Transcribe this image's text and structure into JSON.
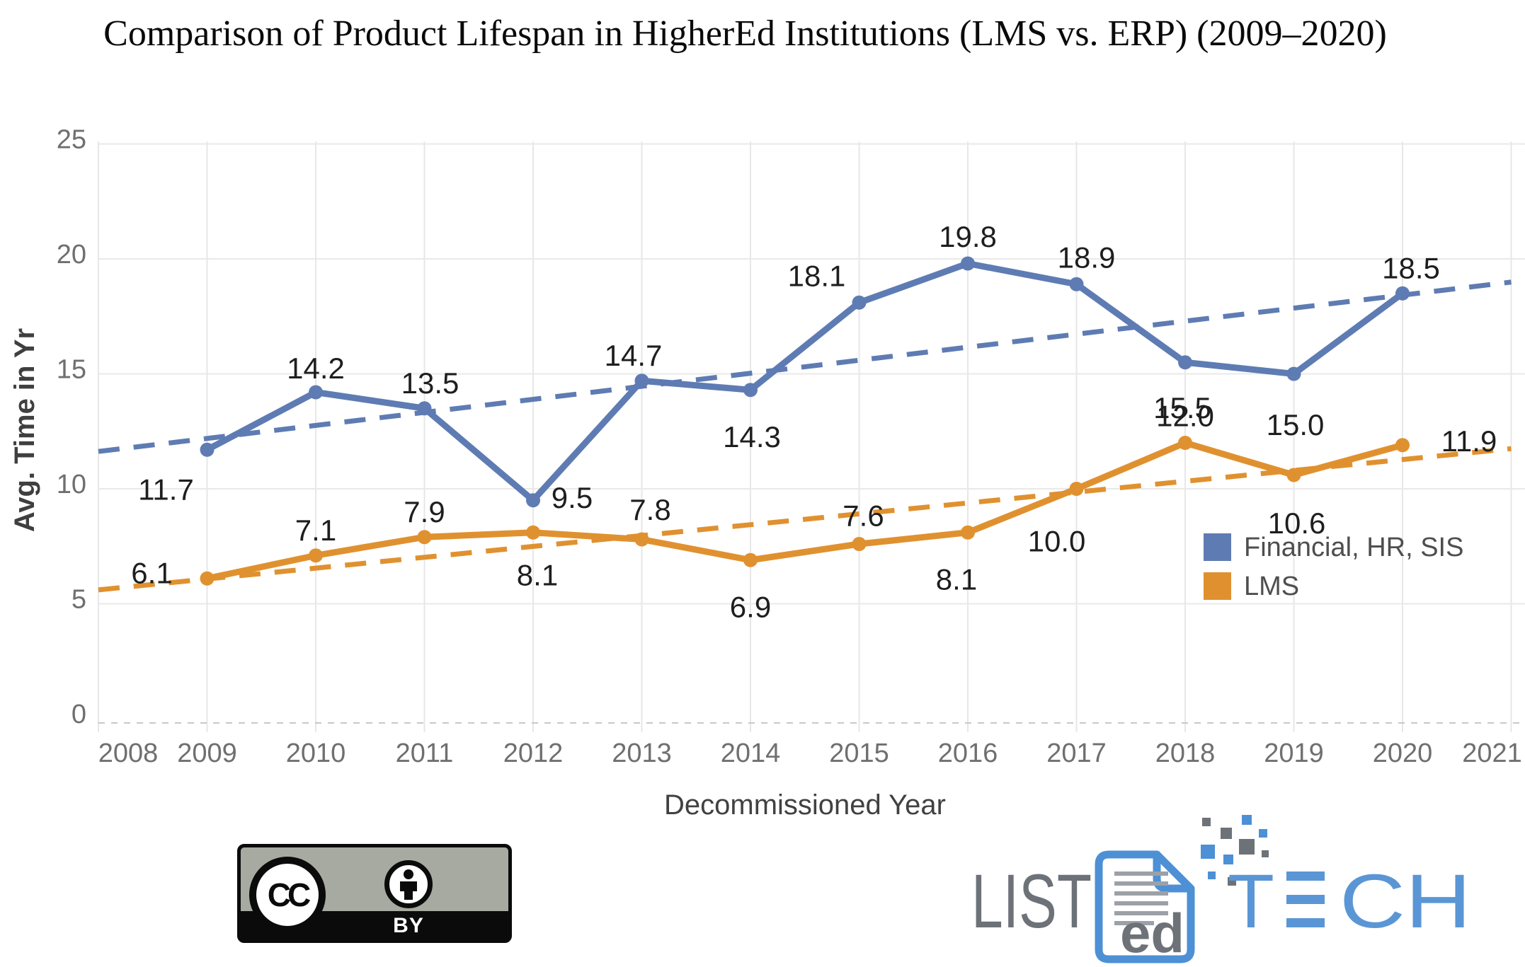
{
  "chart_data": {
    "type": "line",
    "title": "Comparison of Product Lifespan in HigherEd Institutions (LMS vs. ERP) (2009–2020)",
    "xlabel": "Decommissioned Year",
    "ylabel": "Avg. Time in Yr",
    "x": [
      2009,
      2010,
      2011,
      2012,
      2013,
      2014,
      2015,
      2016,
      2017,
      2018,
      2019,
      2020
    ],
    "x_ticks": [
      2008,
      2009,
      2010,
      2011,
      2012,
      2013,
      2014,
      2015,
      2016,
      2017,
      2018,
      2019,
      2020,
      2021
    ],
    "y_ticks": [
      0,
      5,
      10,
      15,
      20,
      25
    ],
    "ylim": [
      0,
      25
    ],
    "xlim": [
      2008,
      2021
    ],
    "grid": true,
    "legend_position": "inside-right",
    "series": [
      {
        "name": "Financial, HR, SIS",
        "color": "#5e7cb3",
        "values": [
          11.7,
          14.2,
          13.5,
          9.5,
          14.7,
          14.3,
          18.1,
          19.8,
          18.9,
          15.5,
          15.0,
          18.5
        ],
        "trendline": "dashed-linear"
      },
      {
        "name": "LMS",
        "color": "#e0912f",
        "values": [
          6.1,
          7.1,
          7.9,
          8.1,
          7.8,
          6.9,
          7.6,
          8.1,
          10.0,
          12.0,
          10.6,
          11.9
        ],
        "trendline": "dashed-linear"
      }
    ]
  },
  "footer": {
    "license_badge": {
      "cc": "CC",
      "by": "BY"
    },
    "logo": {
      "list": "LIST",
      "ed": "ed",
      "tech_t": "T",
      "tech_ch": "CH"
    }
  }
}
